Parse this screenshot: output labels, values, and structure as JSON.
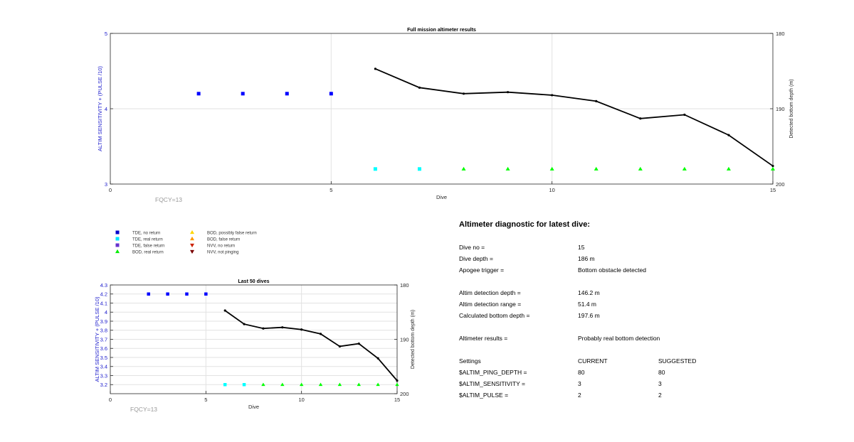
{
  "chart_data": [
    {
      "id": "full",
      "type": "line",
      "title": "Full mission altimeter results",
      "xlabel": "Dive",
      "ylabel_left": "ALTIM SENSITIVITY + (PULSE /10)",
      "ylabel_right": "Detected bottom depth (m)",
      "xlim": [
        0,
        15
      ],
      "ylim_left": [
        3,
        5
      ],
      "ylim_right": [
        200,
        180
      ],
      "xticks": [
        "0",
        "5",
        "10",
        "15"
      ],
      "yticks_left": [
        "3",
        "4",
        "5"
      ],
      "yticks_right": [
        "180",
        "190",
        "200"
      ],
      "grid": true,
      "annotation": "FQCY=13",
      "series": [
        {
          "name": "TDE, no return",
          "marker": "square",
          "color": "#0000ff",
          "axis": "left",
          "x": [
            2,
            3,
            4,
            5
          ],
          "y": [
            4.2,
            4.2,
            4.2,
            4.2
          ]
        },
        {
          "name": "TDE, real return",
          "marker": "square",
          "color": "#00ffff",
          "axis": "left",
          "x": [
            6,
            7
          ],
          "y": [
            3.2,
            3.2
          ]
        },
        {
          "name": "BOD, real return",
          "marker": "triangle-up",
          "color": "#00ff00",
          "axis": "left",
          "x": [
            8,
            9,
            10,
            11,
            12,
            13,
            14,
            15
          ],
          "y": [
            3.2,
            3.2,
            3.2,
            3.2,
            3.2,
            3.2,
            3.2,
            3.2
          ]
        },
        {
          "marker": "dot-line",
          "color": "#000000",
          "axis": "right",
          "x": [
            6,
            7,
            8,
            9,
            10,
            11,
            12,
            13,
            14,
            15
          ],
          "y": [
            184.7,
            187.2,
            188.0,
            187.8,
            188.2,
            189.0,
            191.3,
            190.8,
            193.5,
            197.6
          ]
        }
      ]
    },
    {
      "id": "last50",
      "type": "line",
      "title": "Last 50 dives",
      "xlabel": "Dive",
      "ylabel_left": "ALTIM SENSITIVITY + (PULSE /10)",
      "ylabel_right": "Detected bottom depth (m)",
      "xlim": [
        0,
        15
      ],
      "ylim_left": [
        3.1,
        4.3
      ],
      "ylim_right": [
        200,
        180
      ],
      "xticks": [
        "0",
        "5",
        "10",
        "15"
      ],
      "yticks_left": [
        "3.2",
        "3.3",
        "3.4",
        "3.5",
        "3.6",
        "3.7",
        "3.8",
        "3.9",
        "4",
        "4.1",
        "4.2",
        "4.3"
      ],
      "yticks_right": [
        "180",
        "190",
        "200"
      ],
      "grid": true,
      "annotation": "FQCY=13",
      "series": [
        {
          "name": "TDE, no return",
          "marker": "square",
          "color": "#0000ff",
          "axis": "left",
          "x": [
            2,
            3,
            4,
            5
          ],
          "y": [
            4.2,
            4.2,
            4.2,
            4.2
          ]
        },
        {
          "name": "TDE, real return",
          "marker": "square",
          "color": "#00ffff",
          "axis": "left",
          "x": [
            6,
            7
          ],
          "y": [
            3.2,
            3.2
          ]
        },
        {
          "name": "BOD, real return",
          "marker": "triangle-up",
          "color": "#00ff00",
          "axis": "left",
          "x": [
            8,
            9,
            10,
            11,
            12,
            13,
            14,
            15
          ],
          "y": [
            3.2,
            3.2,
            3.2,
            3.2,
            3.2,
            3.2,
            3.2,
            3.2
          ]
        },
        {
          "marker": "dot-line",
          "color": "#000000",
          "axis": "right",
          "x": [
            6,
            7,
            8,
            9,
            10,
            11,
            12,
            13,
            14,
            15
          ],
          "y": [
            184.7,
            187.2,
            188.0,
            187.8,
            188.2,
            189.0,
            191.3,
            190.8,
            193.5,
            197.6
          ]
        }
      ]
    }
  ],
  "legend": [
    {
      "label": "TDE, no return",
      "marker": "square",
      "color": "#0000cc"
    },
    {
      "label": "TDE, real return",
      "marker": "square",
      "color": "#00e5ff"
    },
    {
      "label": "TDE, false return",
      "marker": "square",
      "color": "#6633cc"
    },
    {
      "label": "BOD, real return",
      "marker": "triangle-up",
      "color": "#00ee00"
    },
    {
      "label": "BOD, possibly false return",
      "marker": "triangle-up",
      "color": "#ffd700"
    },
    {
      "label": "BOD, false return",
      "marker": "triangle-up",
      "color": "#ff9900"
    },
    {
      "label": "NVV, no return",
      "marker": "triangle-down",
      "color": "#cc2200"
    },
    {
      "label": "NVV, not pinging",
      "marker": "triangle-down",
      "color": "#7a0000"
    }
  ],
  "diagnostic": {
    "title": "Altimeter diagnostic for latest dive:",
    "dive_no_label": "Dive no =",
    "dive_no": "15",
    "dive_depth_label": "Dive depth =",
    "dive_depth": "186 m",
    "apogee_label": "Apogee trigger =",
    "apogee": "Bottom obstacle detected",
    "det_depth_label": "Altim detection depth =",
    "det_depth": "146.2 m",
    "det_range_label": "Altim detection range =",
    "det_range": "51.4 m",
    "calc_depth_label": "Calculated bottom depth =",
    "calc_depth": "197.6 m",
    "results_label": "Altimeter results =",
    "results": "Probably real bottom detection",
    "settings_label": "Settings",
    "current_label": "CURRENT",
    "suggested_label": "SUGGESTED",
    "settings": [
      {
        "name": "$ALTIM_PING_DEPTH =",
        "current": "80",
        "suggested": "80"
      },
      {
        "name": "$ALTIM_SENSITIVITY =",
        "current": "3",
        "suggested": "3"
      },
      {
        "name": "$ALTIM_PULSE =",
        "current": "2",
        "suggested": "2"
      }
    ]
  }
}
